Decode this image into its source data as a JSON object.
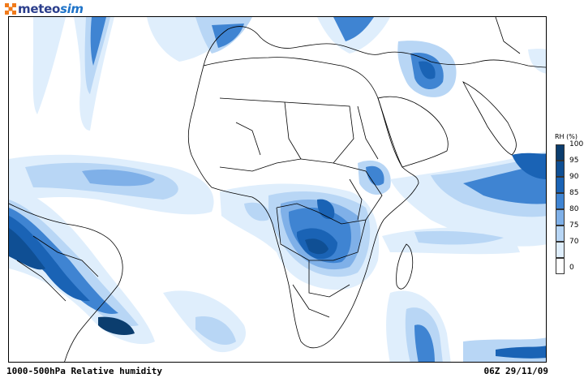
{
  "logo": {
    "text_part1": "meteo",
    "text_part2": "sim",
    "icon": "checker-square-icon"
  },
  "caption": {
    "left": "1000-500hPa Relative humidity",
    "right": "06Z 29/11/09"
  },
  "legend": {
    "title": "RH (%)",
    "levels": [
      {
        "label": "100",
        "color": "#0b3d6e"
      },
      {
        "label": "95",
        "color": "#0f4f94"
      },
      {
        "label": "90",
        "color": "#1a63b5"
      },
      {
        "label": "85",
        "color": "#3f84d2"
      },
      {
        "label": "80",
        "color": "#7fb0e8"
      },
      {
        "label": "75",
        "color": "#b8d6f5"
      },
      {
        "label": "70",
        "color": "#dfeefc"
      },
      {
        "label": "0",
        "color": "#ffffff"
      }
    ]
  }
}
